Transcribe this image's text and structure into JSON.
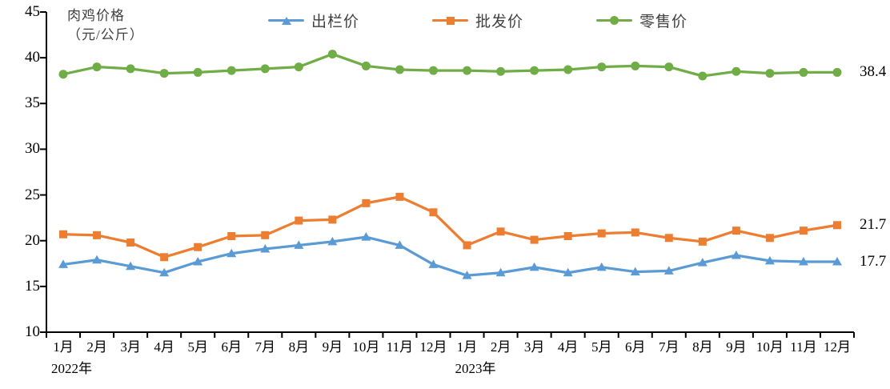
{
  "title": {
    "line1": "肉鸡价格",
    "line2": "（元/公斤）"
  },
  "chart_data": {
    "type": "line",
    "title": "肉鸡价格（元/公斤）",
    "ylabel": "元/公斤",
    "xlabel": "",
    "ylim": [
      10,
      45
    ],
    "y_ticks": [
      45,
      40,
      35,
      30,
      25,
      20,
      15,
      10
    ],
    "grid": false,
    "legend_position": "top",
    "categories": [
      "1月",
      "2月",
      "3月",
      "4月",
      "5月",
      "6月",
      "7月",
      "8月",
      "9月",
      "10月",
      "11月",
      "12月",
      "1月",
      "2月",
      "3月",
      "4月",
      "5月",
      "6月",
      "7月",
      "8月",
      "9月",
      "10月",
      "11月",
      "12月"
    ],
    "year_labels": [
      {
        "text": "2022年",
        "month_index": 0
      },
      {
        "text": "2023年",
        "month_index": 12
      }
    ],
    "series": [
      {
        "name": "出栏价",
        "marker": "triangle",
        "color": "#5B9BD5",
        "end_label": "17.7",
        "values": [
          17.4,
          17.9,
          17.2,
          16.5,
          17.7,
          18.6,
          19.1,
          19.5,
          19.9,
          20.4,
          19.5,
          17.4,
          16.2,
          16.5,
          17.1,
          16.5,
          17.1,
          16.6,
          16.7,
          17.6,
          18.4,
          17.8,
          17.7,
          17.7
        ]
      },
      {
        "name": "批发价",
        "marker": "square",
        "color": "#ED7D31",
        "end_label": "21.7",
        "values": [
          20.7,
          20.6,
          19.8,
          18.2,
          19.3,
          20.5,
          20.6,
          22.2,
          22.3,
          24.1,
          24.8,
          23.1,
          19.5,
          21.0,
          20.1,
          20.5,
          20.8,
          20.9,
          20.3,
          19.9,
          21.1,
          20.3,
          21.1,
          21.7
        ]
      },
      {
        "name": "零售价",
        "marker": "circle",
        "color": "#70AD47",
        "end_label": "38.4",
        "values": [
          38.2,
          39.0,
          38.8,
          38.3,
          38.4,
          38.6,
          38.8,
          39.0,
          40.4,
          39.1,
          38.7,
          38.6,
          38.6,
          38.5,
          38.6,
          38.7,
          39.0,
          39.1,
          39.0,
          38.0,
          38.5,
          38.3,
          38.4,
          38.4
        ]
      }
    ],
    "axis_color": "#000000"
  }
}
